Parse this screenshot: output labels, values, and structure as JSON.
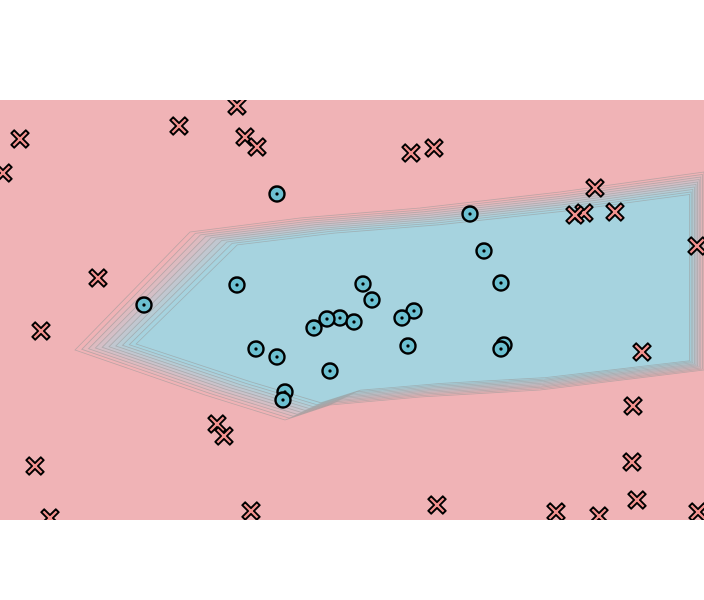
{
  "chart_data": {
    "type": "scatter",
    "title": "",
    "xlabel": "",
    "ylabel": "",
    "grid": false,
    "legend": "none",
    "xlim": [
      0,
      704
    ],
    "ylim": [
      100,
      520
    ],
    "background": {
      "region_negative_color": "#f0b3b6",
      "region_positive_color": "#a6d3df",
      "contour_line_color": "#9a9a9a",
      "contour_levels": 9
    },
    "decision_region_outline": [
      [
        75,
        350
      ],
      [
        190,
        232
      ],
      [
        300,
        218
      ],
      [
        420,
        208
      ],
      [
        560,
        192
      ],
      [
        704,
        172
      ],
      [
        704,
        370
      ],
      [
        540,
        390
      ],
      [
        420,
        397
      ],
      [
        330,
        405
      ],
      [
        285,
        420
      ],
      [
        205,
        395
      ]
    ],
    "series": [
      {
        "marker": "cross",
        "color": "#f4928f",
        "edge_color": "#000000",
        "points": [
          [
            237,
            106
          ],
          [
            20,
            139
          ],
          [
            179,
            126
          ],
          [
            245,
            137
          ],
          [
            257,
            147
          ],
          [
            411,
            153
          ],
          [
            434,
            148
          ],
          [
            3,
            173
          ],
          [
            595,
            188
          ],
          [
            584,
            213
          ],
          [
            575,
            215
          ],
          [
            615,
            212
          ],
          [
            697,
            246
          ],
          [
            98,
            278
          ],
          [
            41,
            331
          ],
          [
            642,
            352
          ],
          [
            633,
            406
          ],
          [
            217,
            424
          ],
          [
            224,
            436
          ],
          [
            632,
            462
          ],
          [
            35,
            466
          ],
          [
            637,
            500
          ],
          [
            437,
            505
          ],
          [
            251,
            511
          ],
          [
            556,
            512
          ],
          [
            599,
            516
          ],
          [
            698,
            512
          ],
          [
            50,
            518
          ]
        ]
      },
      {
        "marker": "circle",
        "color": "#6cc0d1",
        "edge_color": "#000000",
        "points": [
          [
            277,
            194
          ],
          [
            470,
            214
          ],
          [
            484,
            251
          ],
          [
            501,
            283
          ],
          [
            237,
            285
          ],
          [
            363,
            284
          ],
          [
            144,
            305
          ],
          [
            372,
            300
          ],
          [
            414,
            311
          ],
          [
            402,
            318
          ],
          [
            340,
            318
          ],
          [
            327,
            319
          ],
          [
            354,
            322
          ],
          [
            314,
            328
          ],
          [
            408,
            346
          ],
          [
            504,
            345
          ],
          [
            501,
            349
          ],
          [
            256,
            349
          ],
          [
            277,
            357
          ],
          [
            330,
            371
          ],
          [
            285,
            392
          ],
          [
            283,
            400
          ]
        ]
      }
    ]
  }
}
